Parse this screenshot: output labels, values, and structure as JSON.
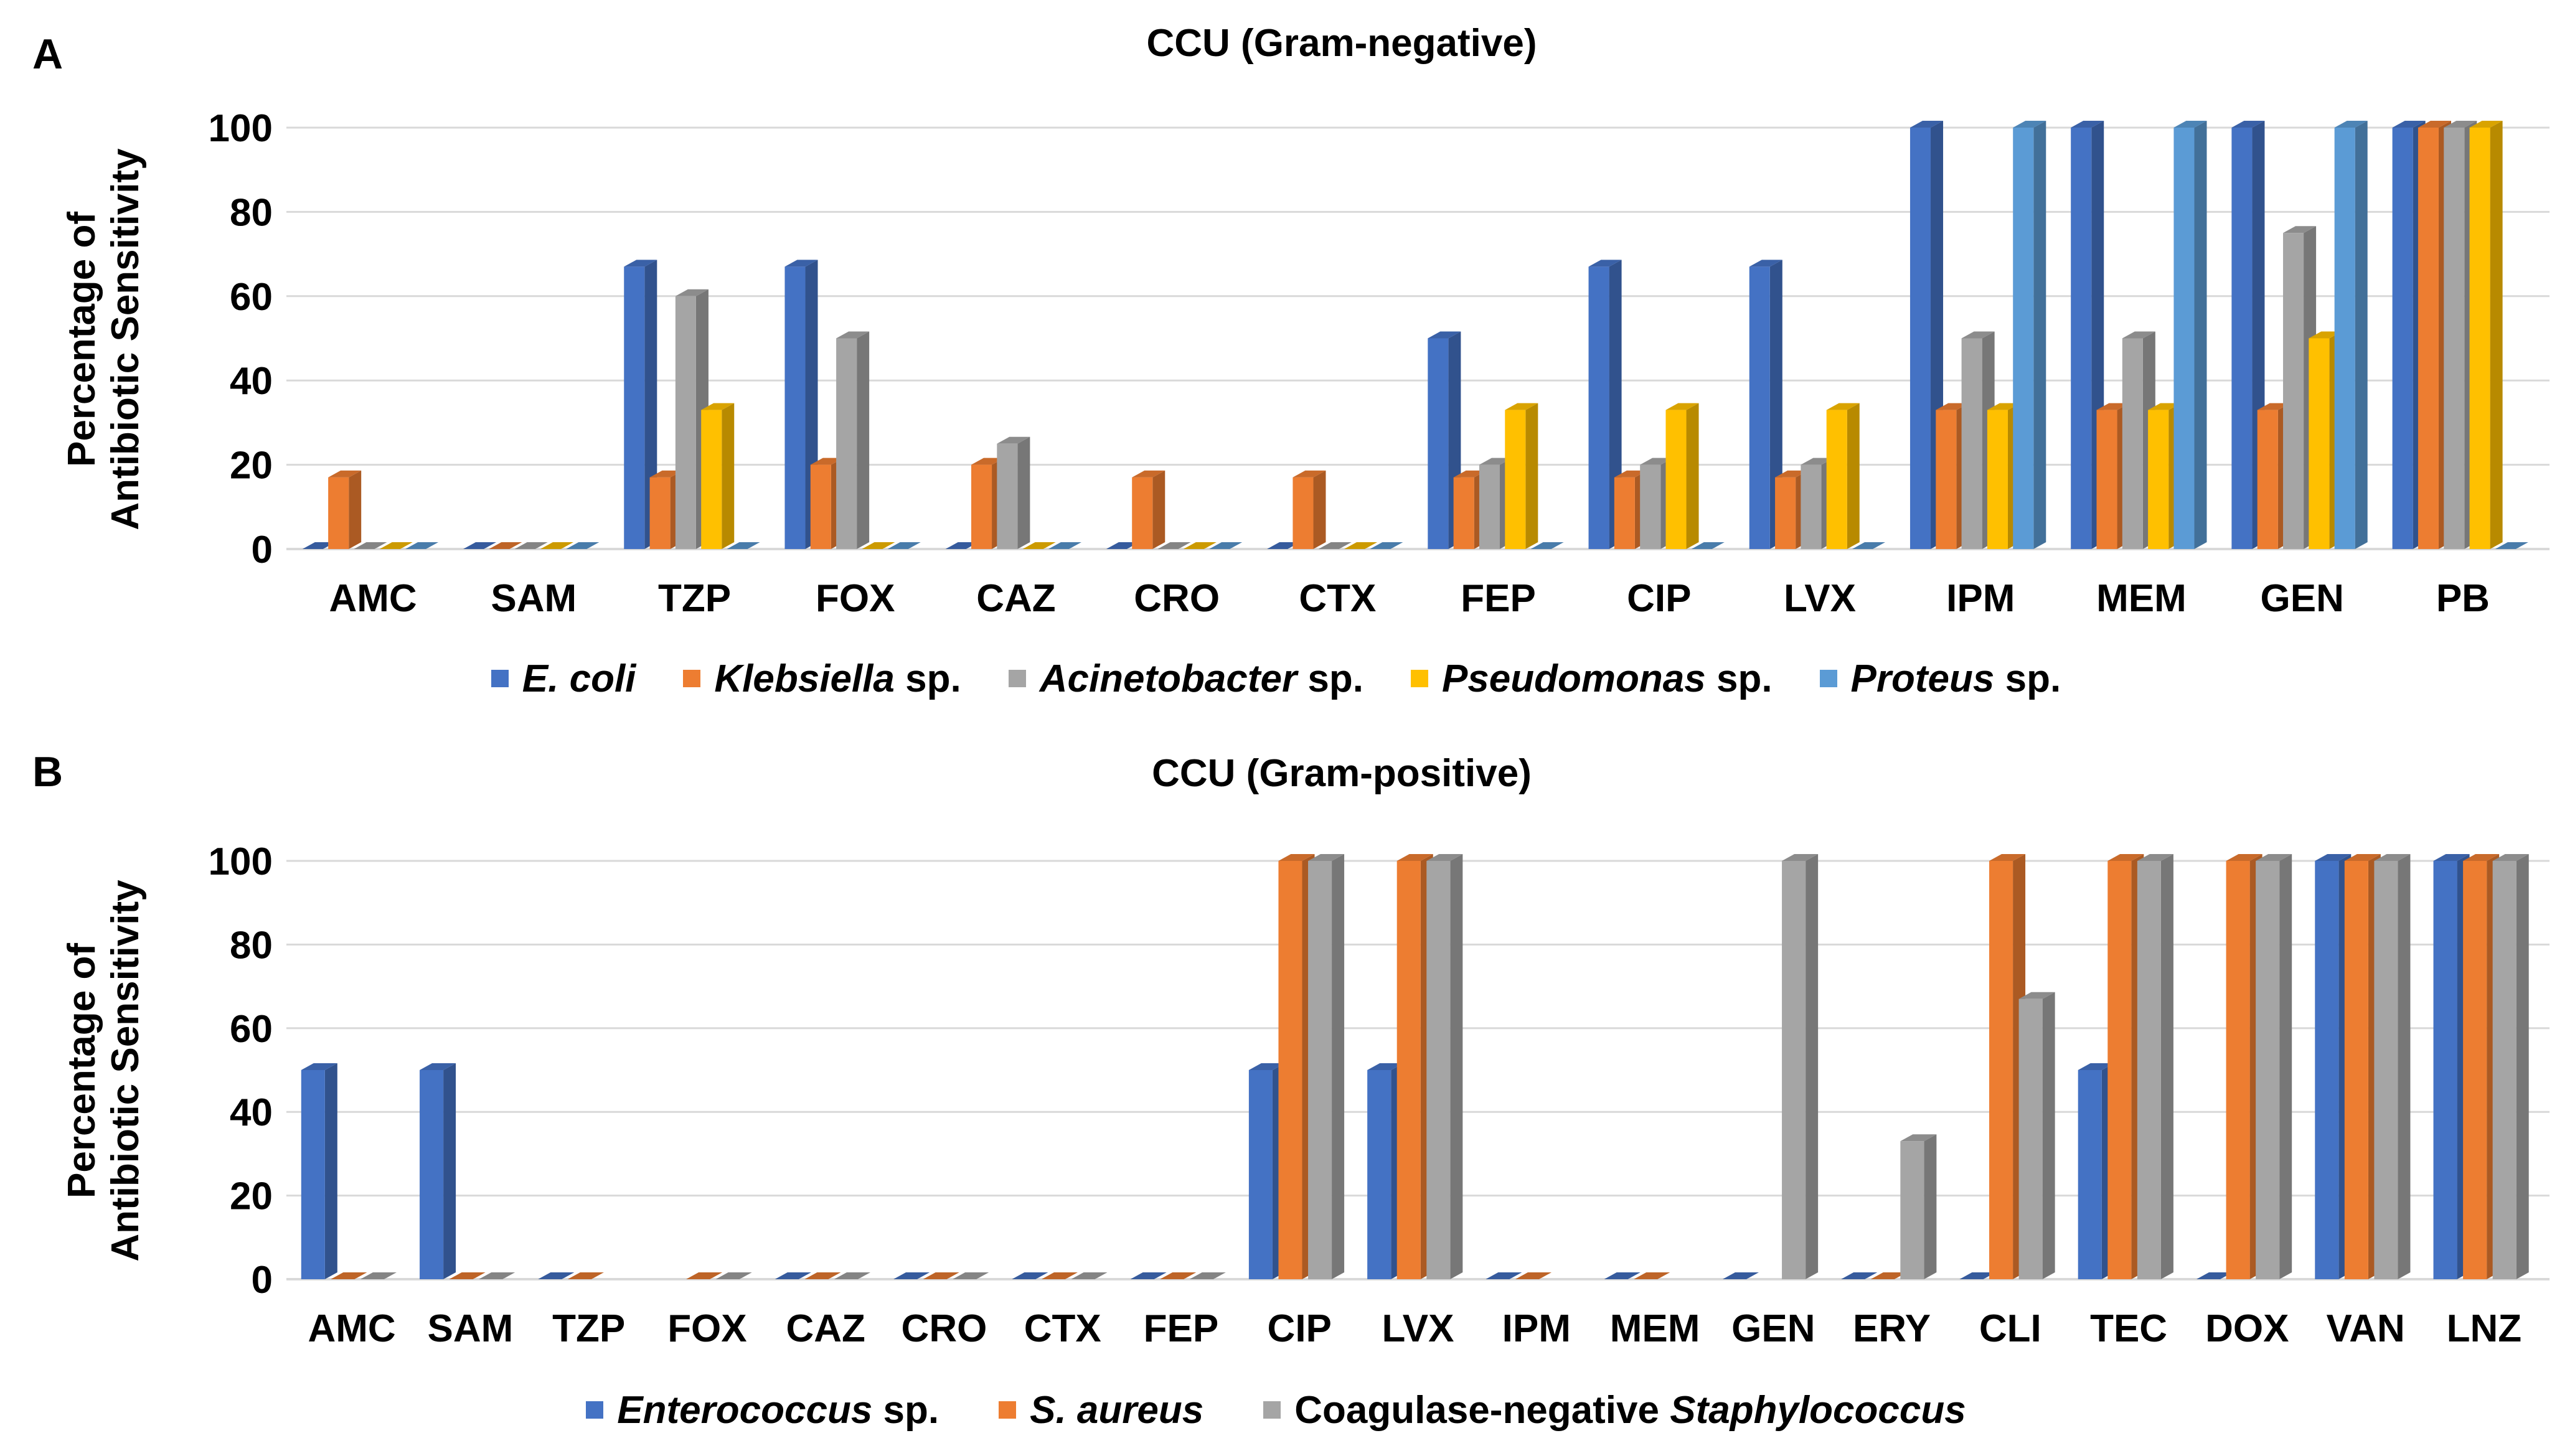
{
  "chart_data": [
    {
      "panel_label": "A",
      "type": "bar",
      "title": "CCU (Gram-negative)",
      "ylabel_lines": [
        "Percentage of",
        "Antibiotic Sensitivity"
      ],
      "ylim": [
        0,
        100
      ],
      "yticks": [
        "0",
        "20",
        "40",
        "60",
        "80",
        "100"
      ],
      "categories": [
        "AMC",
        "SAM",
        "TZP",
        "FOX",
        "CAZ",
        "CRO",
        "CTX",
        "FEP",
        "CIP",
        "LVX",
        "IPM",
        "MEM",
        "GEN",
        "PB"
      ],
      "series": [
        {
          "name": "E. coli",
          "italic": "E. coli",
          "suffix": "",
          "color": "#4472C4",
          "values": [
            0,
            0,
            67,
            67,
            0,
            0,
            0,
            50,
            67,
            67,
            100,
            100,
            100,
            100
          ]
        },
        {
          "name": "Klebsiella sp.",
          "italic": "Klebsiella",
          "suffix": " sp.",
          "color": "#ED7D31",
          "values": [
            17,
            0,
            17,
            20,
            20,
            17,
            17,
            17,
            17,
            17,
            33,
            33,
            33,
            100
          ]
        },
        {
          "name": "Acinetobacter sp.",
          "italic": "Acinetobacter",
          "suffix": " sp.",
          "color": "#A5A5A5",
          "values": [
            0,
            0,
            60,
            50,
            25,
            0,
            0,
            20,
            20,
            20,
            50,
            50,
            75,
            100
          ]
        },
        {
          "name": "Pseudomonas sp.",
          "italic": "Pseudomonas",
          "suffix": " sp.",
          "color": "#FFC000",
          "values": [
            0,
            0,
            33,
            0,
            0,
            0,
            0,
            33,
            33,
            33,
            33,
            33,
            50,
            100
          ]
        },
        {
          "name": "Proteus sp.",
          "italic": "Proteus",
          "suffix": " sp.",
          "color": "#5B9BD5",
          "values": [
            0,
            0,
            0,
            0,
            0,
            0,
            0,
            0,
            0,
            0,
            100,
            100,
            100,
            0
          ]
        }
      ]
    },
    {
      "panel_label": "B",
      "type": "bar",
      "title": "CCU (Gram-positive)",
      "ylabel_lines": [
        "Percentage of",
        "Antibiotic Sensitivity"
      ],
      "ylim": [
        0,
        100
      ],
      "yticks": [
        "0",
        "20",
        "40",
        "60",
        "80",
        "100"
      ],
      "categories": [
        "AMC",
        "SAM",
        "TZP",
        "FOX",
        "CAZ",
        "CRO",
        "CTX",
        "FEP",
        "CIP",
        "LVX",
        "IPM",
        "MEM",
        "GEN",
        "ERY",
        "CLI",
        "TEC",
        "DOX",
        "VAN",
        "LNZ"
      ],
      "series": [
        {
          "name": "Enterococcus sp.",
          "italic": "Enterococcus",
          "suffix": " sp.",
          "color": "#4472C4",
          "values": [
            50,
            50,
            0,
            null,
            0,
            0,
            0,
            0,
            50,
            50,
            0,
            0,
            0,
            0,
            0,
            50,
            0,
            100,
            100
          ]
        },
        {
          "name": "S. aureus",
          "italic": "S. aureus",
          "suffix": "",
          "color": "#ED7D31",
          "values": [
            0,
            0,
            0,
            0,
            0,
            0,
            0,
            0,
            100,
            100,
            0,
            0,
            null,
            0,
            100,
            100,
            100,
            100,
            100
          ]
        },
        {
          "name": "Coagulase-negative Staphylococcus",
          "prefix": "Coagulase-negative ",
          "italic": "Staphylococcus",
          "suffix": "",
          "color": "#A5A5A5",
          "values": [
            0,
            0,
            null,
            0,
            0,
            0,
            0,
            0,
            100,
            100,
            null,
            null,
            100,
            33,
            67,
            100,
            100,
            100,
            100
          ]
        }
      ]
    }
  ]
}
